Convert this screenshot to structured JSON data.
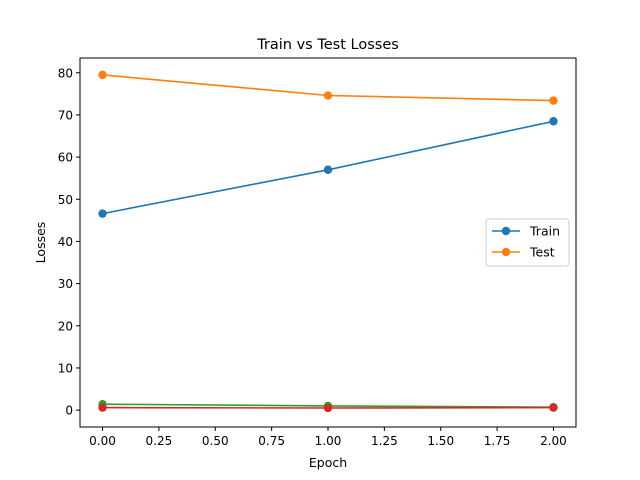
{
  "chart_data": {
    "type": "line",
    "title": "Train vs Test Losses",
    "xlabel": "Epoch",
    "ylabel": "Losses",
    "x": [
      0,
      1,
      2
    ],
    "xlim": [
      -0.1,
      2.1
    ],
    "ylim": [
      -4.0,
      83.5
    ],
    "xticks": [
      0.0,
      0.25,
      0.5,
      0.75,
      1.0,
      1.25,
      1.5,
      1.75,
      2.0
    ],
    "xtick_labels": [
      "0.00",
      "0.25",
      "0.50",
      "0.75",
      "1.00",
      "1.25",
      "1.50",
      "1.75",
      "2.00"
    ],
    "yticks": [
      0,
      10,
      20,
      30,
      40,
      50,
      60,
      70,
      80
    ],
    "ytick_labels": [
      "0",
      "10",
      "20",
      "30",
      "40",
      "50",
      "60",
      "70",
      "80"
    ],
    "grid": false,
    "legend_position": "center-right",
    "series": [
      {
        "name": "Train",
        "values": [
          46.6,
          57.0,
          68.5
        ],
        "color": "#1f77b4",
        "marker": "circle"
      },
      {
        "name": "Test",
        "values": [
          79.5,
          74.6,
          73.4
        ],
        "color": "#ff7f0e",
        "marker": "circle"
      },
      {
        "values": [
          1.4,
          1.0,
          0.7
        ],
        "color": "#2ca02c",
        "marker": "circle"
      },
      {
        "values": [
          0.6,
          0.5,
          0.6
        ],
        "color": "#d62728",
        "marker": "circle"
      }
    ]
  }
}
